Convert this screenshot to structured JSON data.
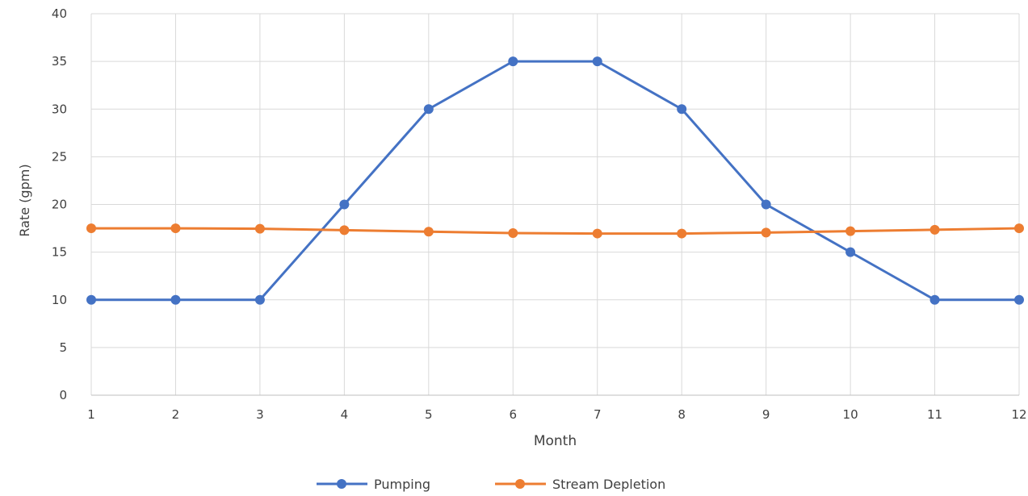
{
  "chart_data": {
    "type": "line",
    "title": "",
    "xlabel": "Month",
    "ylabel": "Rate (gpm)",
    "x": [
      1,
      2,
      3,
      4,
      5,
      6,
      7,
      8,
      9,
      10,
      11,
      12
    ],
    "xlim": [
      1,
      12
    ],
    "ylim": [
      0,
      40
    ],
    "y_ticks": [
      0,
      5,
      10,
      15,
      20,
      25,
      30,
      35,
      40
    ],
    "grid": true,
    "legend_position": "bottom",
    "series": [
      {
        "name": "Pumping",
        "color": "#4472C4",
        "marker": "circle",
        "values": [
          10,
          10,
          10,
          20,
          30,
          35,
          35,
          30,
          20,
          15,
          10,
          10
        ]
      },
      {
        "name": "Stream Depletion",
        "color": "#ED7D31",
        "marker": "circle",
        "values": [
          17.5,
          17.5,
          17.45,
          17.3,
          17.15,
          17.0,
          16.95,
          16.95,
          17.05,
          17.2,
          17.35,
          17.5
        ]
      }
    ]
  }
}
